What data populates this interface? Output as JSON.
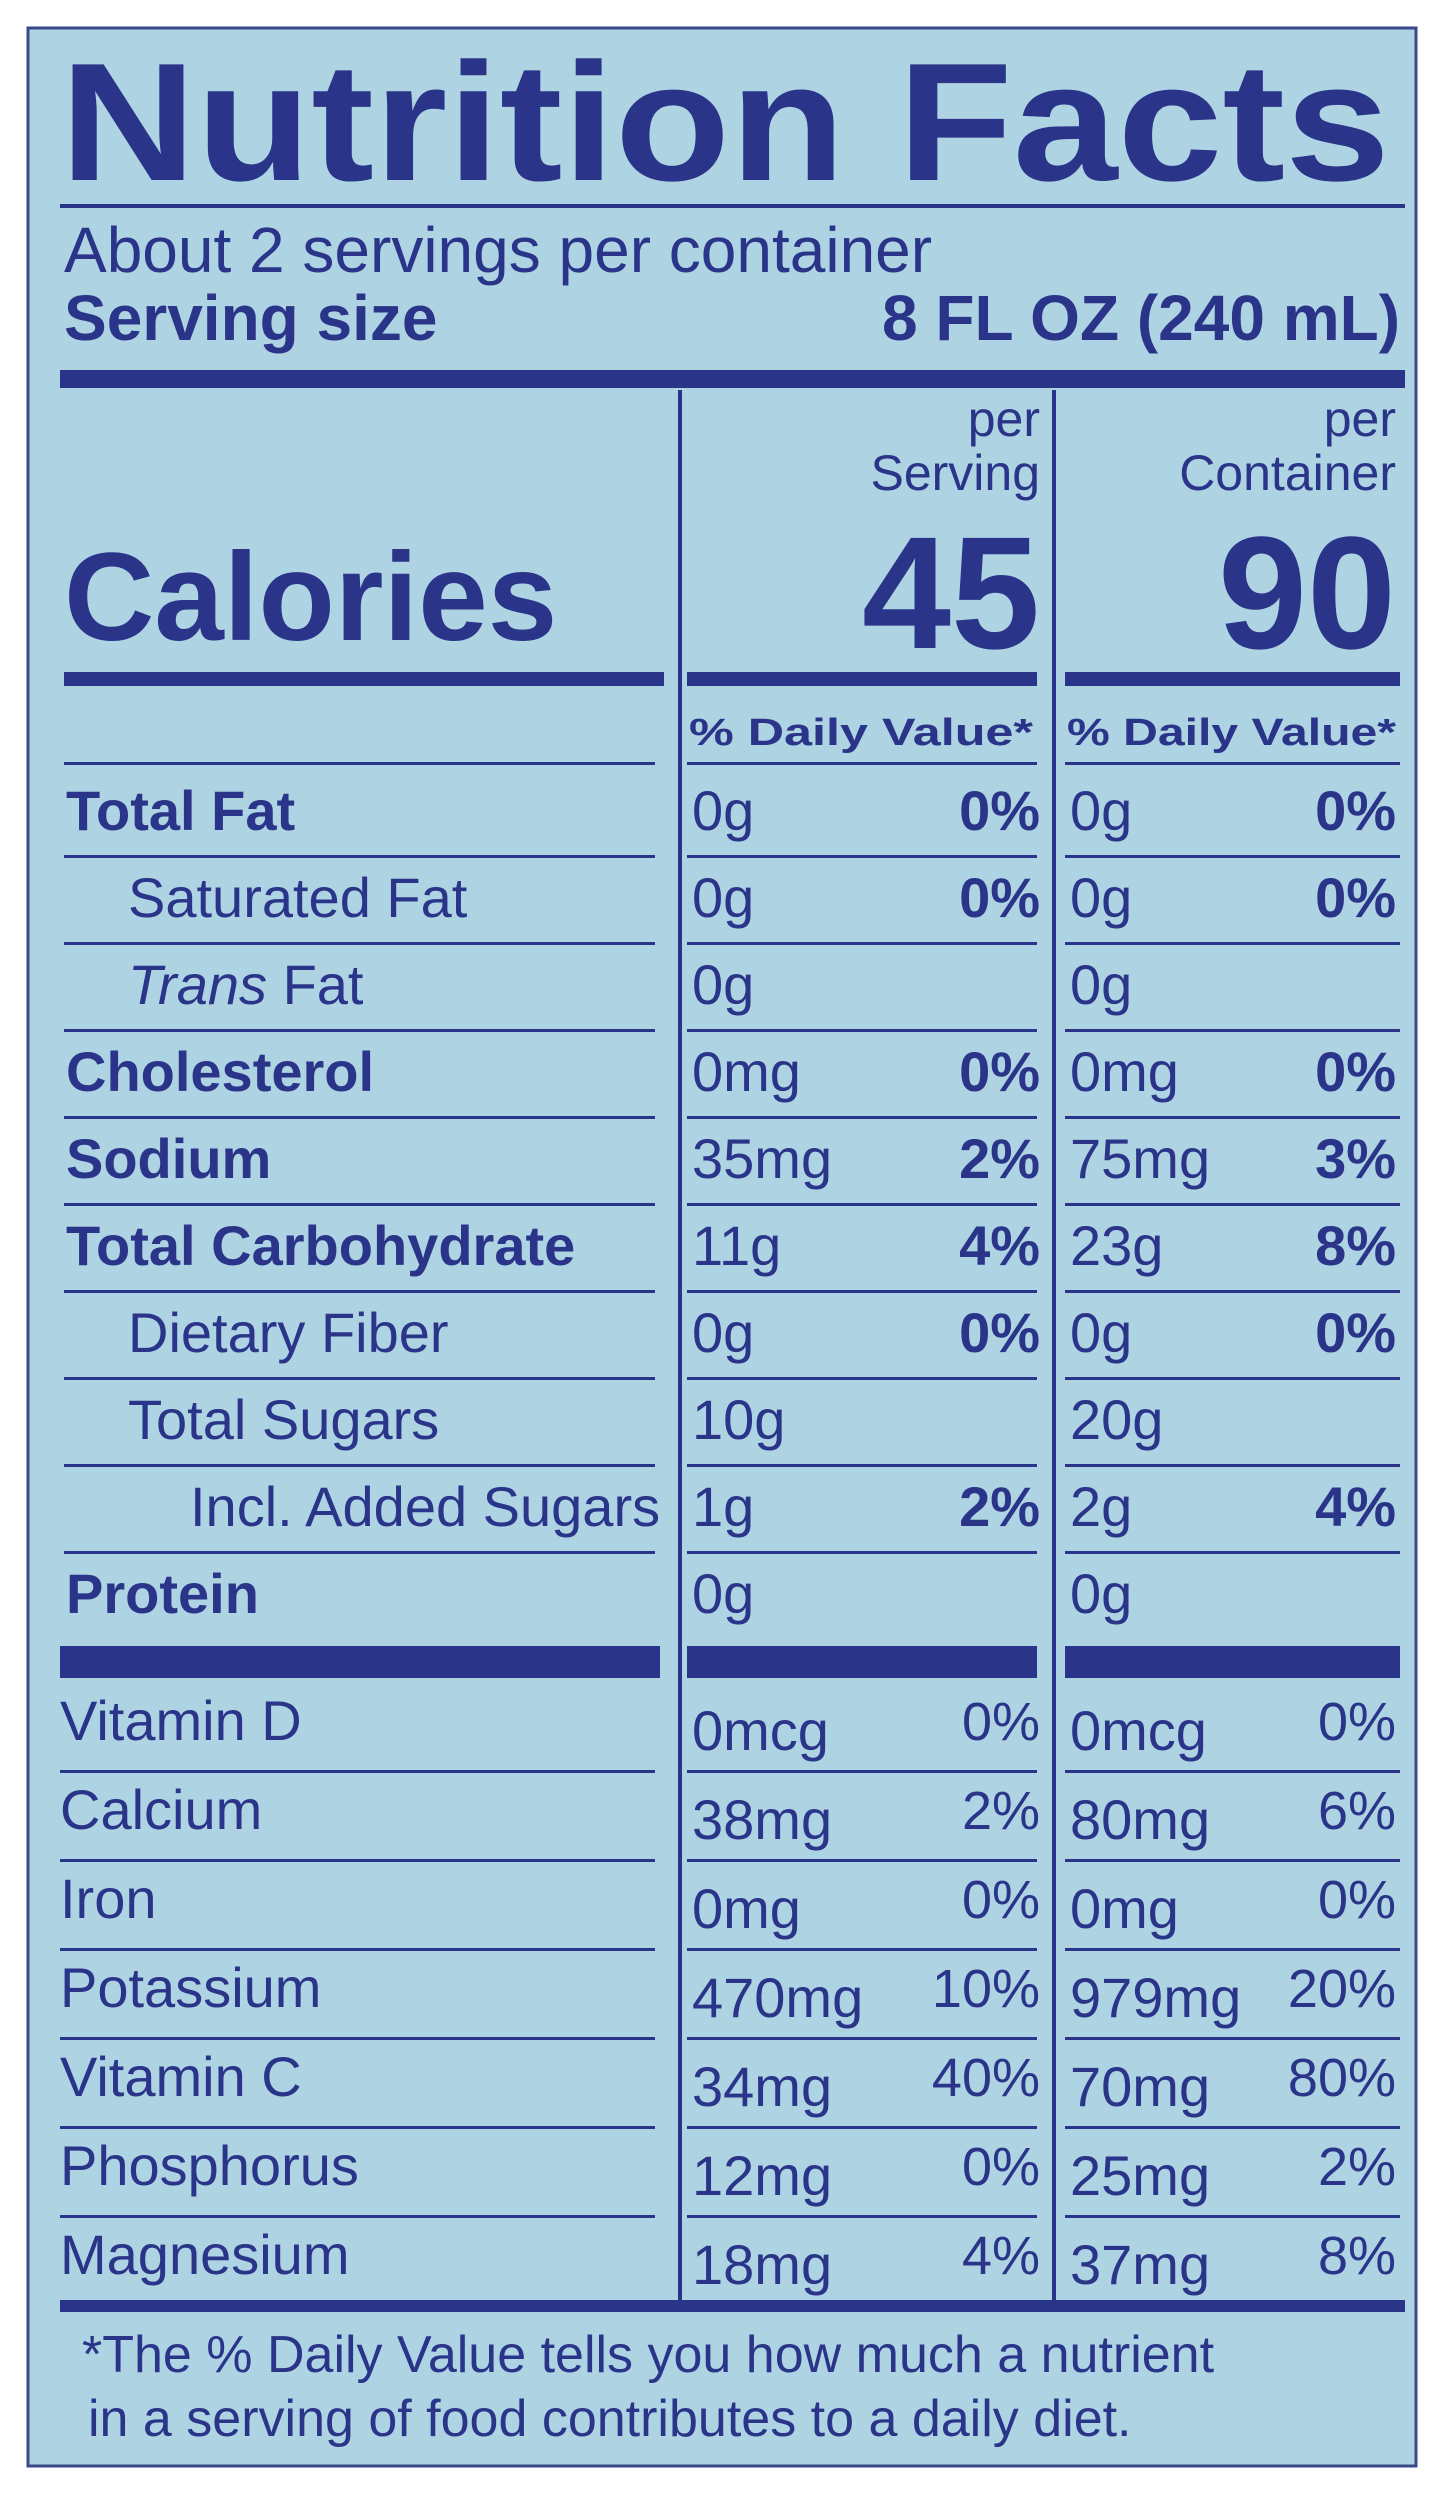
{
  "title": "Nutrition Facts",
  "servings": "About 2 servings per container",
  "serving_size": {
    "label": "Serving size",
    "value": "8 FL OZ (240 mL)"
  },
  "calories_label": "Calories",
  "columns": [
    {
      "header": [
        "per",
        "Serving"
      ],
      "calories": 45,
      "daily_value_header": "% Daily Value*"
    },
    {
      "header": [
        "per",
        "Container"
      ],
      "calories": 90,
      "daily_value_header": "% Daily Value*"
    }
  ],
  "nutrients": [
    {
      "name": "Total Fat",
      "level": 0,
      "values": [
        {
          "amount": "0g",
          "dv": "0%"
        },
        {
          "amount": "0g",
          "dv": "0%"
        }
      ]
    },
    {
      "name": "Saturated Fat",
      "level": 1,
      "values": [
        {
          "amount": "0g",
          "dv": "0%"
        },
        {
          "amount": "0g",
          "dv": "0%"
        }
      ]
    },
    {
      "name_italic": "Trans",
      "name": "Fat",
      "level": 1,
      "values": [
        {
          "amount": "0g",
          "dv": null
        },
        {
          "amount": "0g",
          "dv": null
        }
      ]
    },
    {
      "name": "Cholesterol",
      "level": 0,
      "values": [
        {
          "amount": "0mg",
          "dv": "0%"
        },
        {
          "amount": "0mg",
          "dv": "0%"
        }
      ]
    },
    {
      "name": "Sodium",
      "level": 0,
      "values": [
        {
          "amount": "35mg",
          "dv": "2%"
        },
        {
          "amount": "75mg",
          "dv": "3%"
        }
      ]
    },
    {
      "name": "Total Carbohydrate",
      "level": 0,
      "values": [
        {
          "amount": "11g",
          "dv": "4%"
        },
        {
          "amount": "23g",
          "dv": "8%"
        }
      ]
    },
    {
      "name": "Dietary Fiber",
      "level": 1,
      "values": [
        {
          "amount": "0g",
          "dv": "0%"
        },
        {
          "amount": "0g",
          "dv": "0%"
        }
      ]
    },
    {
      "name": "Total Sugars",
      "level": 1,
      "values": [
        {
          "amount": "10g",
          "dv": null
        },
        {
          "amount": "20g",
          "dv": null
        }
      ]
    },
    {
      "name": "Incl. Added Sugars",
      "level": 2,
      "values": [
        {
          "amount": "1g",
          "dv": "2%"
        },
        {
          "amount": "2g",
          "dv": "4%"
        }
      ]
    },
    {
      "name": "Protein",
      "level": 0,
      "values": [
        {
          "amount": "0g",
          "dv": null
        },
        {
          "amount": "0g",
          "dv": null
        }
      ]
    }
  ],
  "vitamins_minerals": [
    {
      "name": "Vitamin D",
      "values": [
        {
          "amount": "0mcg",
          "dv": "0%"
        },
        {
          "amount": "0mcg",
          "dv": "0%"
        }
      ]
    },
    {
      "name": "Calcium",
      "values": [
        {
          "amount": "38mg",
          "dv": "2%"
        },
        {
          "amount": "80mg",
          "dv": "6%"
        }
      ]
    },
    {
      "name": "Iron",
      "values": [
        {
          "amount": "0mg",
          "dv": "0%"
        },
        {
          "amount": "0mg",
          "dv": "0%"
        }
      ]
    },
    {
      "name": "Potassium",
      "values": [
        {
          "amount": "470mg",
          "dv": "10%"
        },
        {
          "amount": "979mg",
          "dv": "20%"
        }
      ]
    },
    {
      "name": "Vitamin C",
      "values": [
        {
          "amount": "34mg",
          "dv": "40%"
        },
        {
          "amount": "70mg",
          "dv": "80%"
        }
      ]
    },
    {
      "name": "Phosphorus",
      "values": [
        {
          "amount": "12mg",
          "dv": "0%"
        },
        {
          "amount": "25mg",
          "dv": "2%"
        }
      ]
    },
    {
      "name": "Magnesium",
      "values": [
        {
          "amount": "18mg",
          "dv": "4%"
        },
        {
          "amount": "37mg",
          "dv": "8%"
        }
      ]
    }
  ],
  "footnote": [
    "*The % Daily Value tells you how much a nutrient",
    "in a serving of food contributes to a daily diet."
  ]
}
